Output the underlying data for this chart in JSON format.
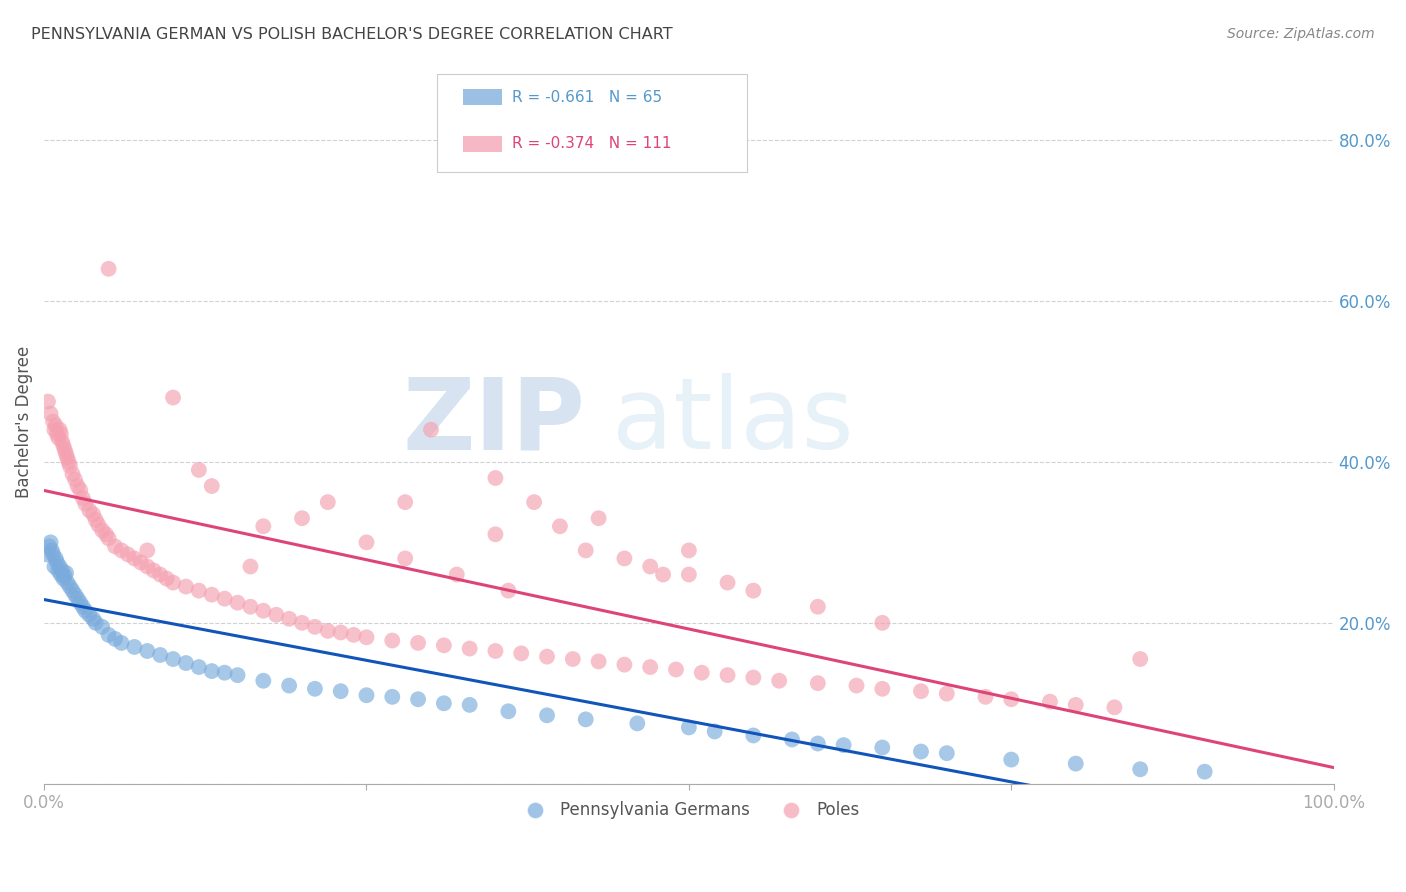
{
  "title": "PENNSYLVANIA GERMAN VS POLISH BACHELOR'S DEGREE CORRELATION CHART",
  "source": "Source: ZipAtlas.com",
  "ylabel": "Bachelor's Degree",
  "legend_blue_r": "R = -0.661",
  "legend_blue_n": "N = 65",
  "legend_pink_r": "R = -0.374",
  "legend_pink_n": "N = 111",
  "legend_blue_label": "Pennsylvania Germans",
  "legend_pink_label": "Poles",
  "watermark_zip": "ZIP",
  "watermark_atlas": "atlas",
  "blue_color": "#7AABDC",
  "pink_color": "#F4A0B0",
  "blue_line_color": "#1155BB",
  "pink_line_color": "#DD4477",
  "background_color": "#ffffff",
  "grid_color": "#cccccc",
  "title_color": "#444444",
  "axis_label_color": "#5599CC",
  "xlim": [
    0.0,
    1.0
  ],
  "ylim": [
    0.0,
    0.9
  ],
  "blue_x": [
    0.002,
    0.004,
    0.005,
    0.006,
    0.007,
    0.008,
    0.009,
    0.01,
    0.011,
    0.012,
    0.013,
    0.014,
    0.015,
    0.016,
    0.017,
    0.018,
    0.02,
    0.022,
    0.024,
    0.026,
    0.028,
    0.03,
    0.032,
    0.035,
    0.038,
    0.04,
    0.045,
    0.05,
    0.055,
    0.06,
    0.07,
    0.08,
    0.09,
    0.1,
    0.11,
    0.12,
    0.13,
    0.14,
    0.15,
    0.17,
    0.19,
    0.21,
    0.23,
    0.25,
    0.27,
    0.29,
    0.31,
    0.33,
    0.36,
    0.39,
    0.42,
    0.46,
    0.5,
    0.52,
    0.55,
    0.58,
    0.6,
    0.62,
    0.65,
    0.68,
    0.7,
    0.75,
    0.8,
    0.85,
    0.9
  ],
  "blue_y": [
    0.285,
    0.295,
    0.3,
    0.29,
    0.285,
    0.27,
    0.28,
    0.275,
    0.265,
    0.27,
    0.26,
    0.265,
    0.255,
    0.258,
    0.262,
    0.25,
    0.245,
    0.24,
    0.235,
    0.23,
    0.225,
    0.22,
    0.215,
    0.21,
    0.205,
    0.2,
    0.195,
    0.185,
    0.18,
    0.175,
    0.17,
    0.165,
    0.16,
    0.155,
    0.15,
    0.145,
    0.14,
    0.138,
    0.135,
    0.128,
    0.122,
    0.118,
    0.115,
    0.11,
    0.108,
    0.105,
    0.1,
    0.098,
    0.09,
    0.085,
    0.08,
    0.075,
    0.07,
    0.065,
    0.06,
    0.055,
    0.05,
    0.048,
    0.045,
    0.04,
    0.038,
    0.03,
    0.025,
    0.018,
    0.015
  ],
  "pink_x": [
    0.003,
    0.005,
    0.007,
    0.008,
    0.009,
    0.01,
    0.011,
    0.012,
    0.013,
    0.014,
    0.015,
    0.016,
    0.017,
    0.018,
    0.019,
    0.02,
    0.022,
    0.024,
    0.026,
    0.028,
    0.03,
    0.032,
    0.035,
    0.038,
    0.04,
    0.042,
    0.045,
    0.048,
    0.05,
    0.055,
    0.06,
    0.065,
    0.07,
    0.075,
    0.08,
    0.085,
    0.09,
    0.095,
    0.1,
    0.11,
    0.12,
    0.13,
    0.14,
    0.15,
    0.16,
    0.17,
    0.18,
    0.19,
    0.2,
    0.21,
    0.22,
    0.23,
    0.24,
    0.25,
    0.27,
    0.29,
    0.31,
    0.33,
    0.35,
    0.37,
    0.39,
    0.41,
    0.43,
    0.45,
    0.47,
    0.49,
    0.51,
    0.53,
    0.55,
    0.57,
    0.6,
    0.63,
    0.65,
    0.68,
    0.7,
    0.73,
    0.75,
    0.78,
    0.8,
    0.83,
    0.05,
    0.08,
    0.1,
    0.13,
    0.16,
    0.2,
    0.25,
    0.28,
    0.32,
    0.36,
    0.3,
    0.35,
    0.4,
    0.45,
    0.5,
    0.28,
    0.35,
    0.42,
    0.48,
    0.55,
    0.6,
    0.65,
    0.38,
    0.43,
    0.5,
    0.22,
    0.17,
    0.12,
    0.47,
    0.53,
    0.85
  ],
  "pink_y": [
    0.475,
    0.46,
    0.45,
    0.44,
    0.445,
    0.435,
    0.43,
    0.44,
    0.435,
    0.425,
    0.42,
    0.415,
    0.41,
    0.405,
    0.4,
    0.395,
    0.385,
    0.378,
    0.37,
    0.365,
    0.355,
    0.348,
    0.34,
    0.335,
    0.328,
    0.322,
    0.315,
    0.31,
    0.305,
    0.295,
    0.29,
    0.285,
    0.28,
    0.275,
    0.27,
    0.265,
    0.26,
    0.255,
    0.25,
    0.245,
    0.24,
    0.235,
    0.23,
    0.225,
    0.22,
    0.215,
    0.21,
    0.205,
    0.2,
    0.195,
    0.19,
    0.188,
    0.185,
    0.182,
    0.178,
    0.175,
    0.172,
    0.168,
    0.165,
    0.162,
    0.158,
    0.155,
    0.152,
    0.148,
    0.145,
    0.142,
    0.138,
    0.135,
    0.132,
    0.128,
    0.125,
    0.122,
    0.118,
    0.115,
    0.112,
    0.108,
    0.105,
    0.102,
    0.098,
    0.095,
    0.64,
    0.29,
    0.48,
    0.37,
    0.27,
    0.33,
    0.3,
    0.28,
    0.26,
    0.24,
    0.44,
    0.38,
    0.32,
    0.28,
    0.26,
    0.35,
    0.31,
    0.29,
    0.26,
    0.24,
    0.22,
    0.2,
    0.35,
    0.33,
    0.29,
    0.35,
    0.32,
    0.39,
    0.27,
    0.25,
    0.155
  ],
  "yticks": [
    0.0,
    0.2,
    0.4,
    0.6,
    0.8
  ],
  "ytick_labels": [
    "",
    "20.0%",
    "40.0%",
    "60.0%",
    "80.0%"
  ],
  "xtick_labels": [
    "0.0%",
    "",
    "",
    "",
    "100.0%"
  ]
}
